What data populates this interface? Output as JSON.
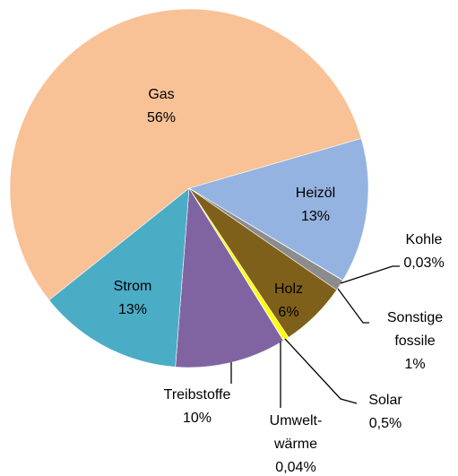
{
  "chart_data": {
    "type": "pie",
    "categories": [
      "Gas",
      "Heizöl",
      "Kohle",
      "Sonstige\nfossile",
      "Holz",
      "Solar",
      "Umwelt-\nwärme",
      "Treibstoffe",
      "Strom"
    ],
    "values": [
      56,
      13,
      0.03,
      1,
      6,
      0.5,
      0.04,
      10,
      13
    ],
    "value_labels": [
      "56%",
      "13%",
      "0,03%",
      "1%",
      "6%",
      "0,5%",
      "0,04%",
      "10%",
      "13%"
    ],
    "colors": [
      "#f9c196",
      "#95b3e0",
      "#4d4d4d",
      "#8c8c8c",
      "#7f601b",
      "#ffff00",
      "#d9d9d9",
      "#8064a2",
      "#4bacc6"
    ]
  }
}
